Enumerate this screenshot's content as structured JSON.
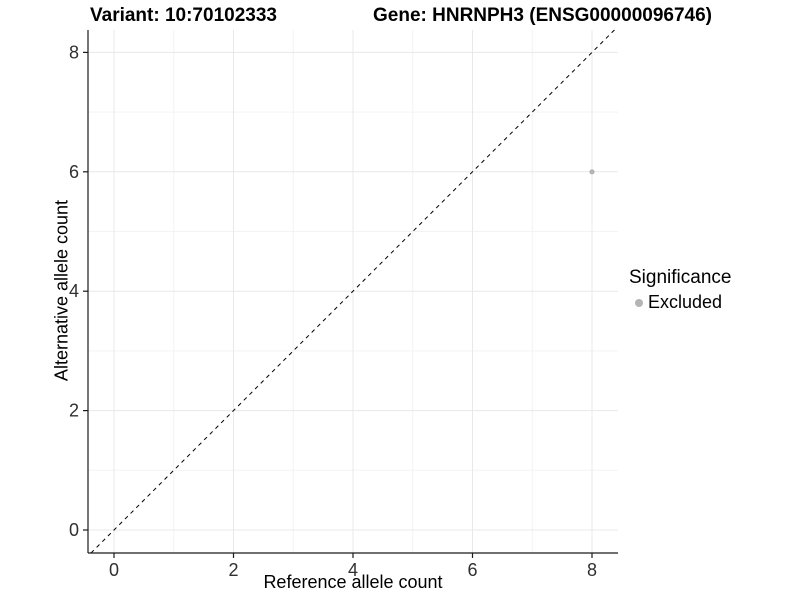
{
  "titles": {
    "variant": "Variant: 10:70102333",
    "gene": "Gene: HNRNPH3 (ENSG00000096746)"
  },
  "axes": {
    "x": {
      "label": "Reference allele count",
      "tick_labels": [
        "0",
        "2",
        "4",
        "6",
        "8"
      ]
    },
    "y": {
      "label": "Alternative allele count",
      "tick_labels": [
        "0",
        "2",
        "4",
        "6",
        "8"
      ]
    }
  },
  "legend": {
    "title": "Significance",
    "items": [
      {
        "label": "Excluded",
        "color": "#b4b4b4"
      }
    ]
  },
  "colors": {
    "background": "#ffffff",
    "axis_line": "#1a1a1a",
    "tick_label": "#303030",
    "grid_major": "#e8e8e8",
    "grid_minor": "#f3f3f3",
    "reference_line": "#000000",
    "point": "#b4b4b4"
  },
  "chart_data": {
    "type": "scatter",
    "title": "Variant: 10:70102333   |   Gene: HNRNPH3 (ENSG00000096746)",
    "xlabel": "Reference allele count",
    "ylabel": "Alternative allele count",
    "xlim": [
      -0.44,
      8.44
    ],
    "ylim": [
      -0.39,
      8.38
    ],
    "x_ticks": [
      0,
      2,
      4,
      6,
      8
    ],
    "y_ticks": [
      0,
      2,
      4,
      6,
      8
    ],
    "x_minor_ticks": [
      1,
      3,
      5,
      7
    ],
    "y_minor_ticks": [
      1,
      3,
      5,
      7
    ],
    "grid": true,
    "legend_position": "right",
    "legend_title": "Significance",
    "series": [
      {
        "name": "Excluded",
        "color": "#b4b4b4",
        "points": [
          {
            "x": 8,
            "y": 6
          }
        ]
      }
    ],
    "reference_line": {
      "equation": "y = x",
      "style": "dashed",
      "color": "#000000"
    }
  }
}
